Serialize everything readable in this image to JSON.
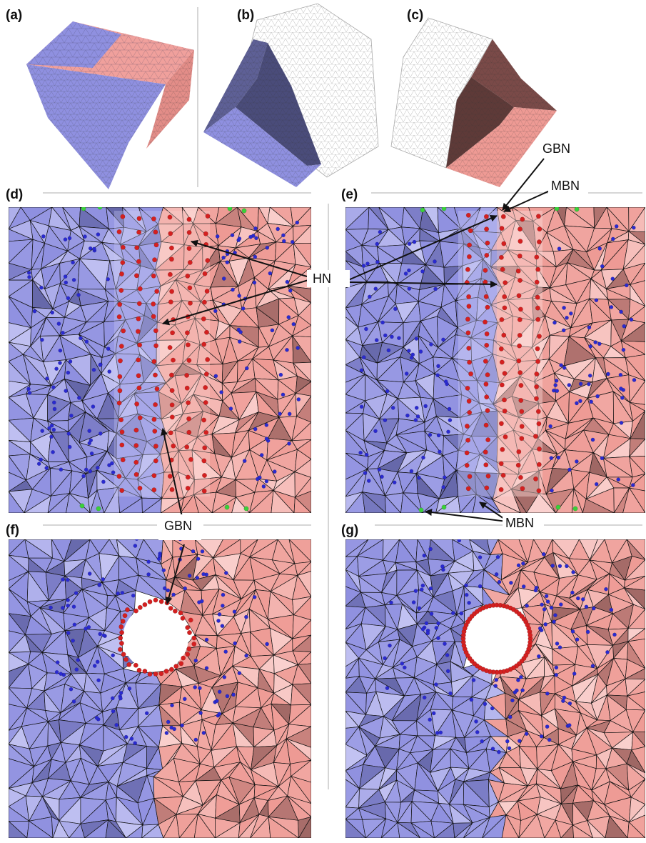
{
  "panels": {
    "a": "(a)",
    "b": "(b)",
    "c": "(c)",
    "d": "(d)",
    "e": "(e)",
    "f": "(f)",
    "g": "(g)"
  },
  "annotations": {
    "gbn_top": "GBN",
    "mbn_top": "MBN",
    "hn": "HN",
    "gbn_mid": "GBN",
    "mbn_bottom": "MBN"
  },
  "colors": {
    "blue_grain": "#8f90e0",
    "blue_light": "#c8c8f4",
    "blue_dark": "#5a5c9a",
    "red_grain": "#ee9a94",
    "red_light": "#fbd6d4",
    "red_dark": "#8a5a58",
    "node_blue": "#2a2ad0",
    "node_red": "#d42020",
    "node_green": "#3ad03a",
    "edge": "#111111"
  }
}
